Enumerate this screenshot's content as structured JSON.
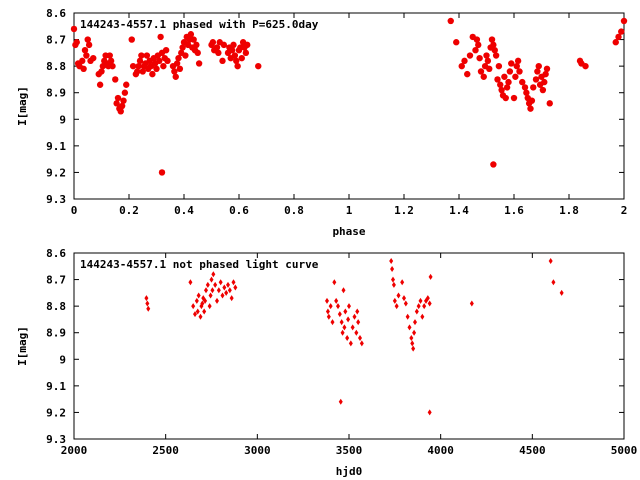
{
  "chart_data": [
    {
      "type": "scatter",
      "title": "144243-4557.1 phased with P=625.0day",
      "xlabel": "phase",
      "ylabel": "I[mag]",
      "xlim": [
        0,
        2
      ],
      "ylim": [
        8.6,
        9.3
      ],
      "y_inverted": true,
      "xticks": [
        "0",
        "0.2",
        "0.4",
        "0.6",
        "0.8",
        "1",
        "1.2",
        "1.4",
        "1.6",
        "1.8",
        "2"
      ],
      "yticks": [
        "8.6",
        "8.7",
        "8.8",
        "8.9",
        "9",
        "9.1",
        "9.2",
        "9.3"
      ],
      "grid": false,
      "marker_color": "#ee0000",
      "marker": "filled-circle",
      "series": [
        {
          "x": [
            0.0,
            0.005,
            0.01,
            0.015,
            0.02,
            0.03,
            0.035,
            0.04,
            0.045,
            0.05,
            0.055,
            0.06,
            0.07,
            0.09,
            0.095,
            0.1,
            0.105,
            0.11,
            0.115,
            0.12,
            0.125,
            0.13,
            0.135,
            0.14,
            0.15,
            0.155,
            0.16,
            0.165,
            0.17,
            0.175,
            0.18,
            0.185,
            0.19,
            0.21,
            0.215,
            0.225,
            0.23,
            0.235,
            0.24,
            0.245,
            0.25,
            0.255,
            0.26,
            0.265,
            0.27,
            0.275,
            0.28,
            0.285,
            0.29,
            0.295,
            0.3,
            0.305,
            0.31,
            0.315,
            0.32,
            0.325,
            0.33,
            0.335,
            0.34,
            0.36,
            0.365,
            0.37,
            0.375,
            0.38,
            0.385,
            0.39,
            0.395,
            0.4,
            0.405,
            0.41,
            0.415,
            0.42,
            0.425,
            0.43,
            0.435,
            0.44,
            0.445,
            0.45,
            0.455,
            0.5,
            0.505,
            0.51,
            0.52,
            0.525,
            0.53,
            0.54,
            0.545,
            0.56,
            0.565,
            0.57,
            0.575,
            0.58,
            0.585,
            0.59,
            0.595,
            0.6,
            0.605,
            0.61,
            0.615,
            0.62,
            0.625,
            0.63,
            0.67,
            1.37,
            1.39,
            1.41,
            1.42,
            1.43,
            1.44,
            1.45,
            1.46,
            1.465,
            1.47,
            1.475,
            1.48,
            1.49,
            1.495,
            1.5,
            1.505,
            1.51,
            1.515,
            1.52,
            1.525,
            1.53,
            1.535,
            1.54,
            1.545,
            1.55,
            1.555,
            1.56,
            1.565,
            1.57,
            1.575,
            1.58,
            1.585,
            1.59,
            1.6,
            1.605,
            1.61,
            1.615,
            1.62,
            1.63,
            1.64,
            1.645,
            1.65,
            1.655,
            1.66,
            1.665,
            1.67,
            1.68,
            1.685,
            1.69,
            1.695,
            1.7,
            1.705,
            1.71,
            1.715,
            1.72,
            1.73,
            1.84,
            1.845,
            1.86,
            1.97,
            1.98,
            1.99,
            2.0,
            1.525
          ],
          "y": [
            8.66,
            8.72,
            8.71,
            8.79,
            8.8,
            8.78,
            8.81,
            8.74,
            8.76,
            8.7,
            8.72,
            8.78,
            8.77,
            8.83,
            8.87,
            8.82,
            8.8,
            8.78,
            8.76,
            8.79,
            8.8,
            8.76,
            8.78,
            8.8,
            8.85,
            8.94,
            8.92,
            8.96,
            8.97,
            8.95,
            8.93,
            8.9,
            8.87,
            8.7,
            8.8,
            8.83,
            8.82,
            8.8,
            8.78,
            8.76,
            8.82,
            8.8,
            8.79,
            8.76,
            8.81,
            8.78,
            8.8,
            8.83,
            8.77,
            8.79,
            8.81,
            8.76,
            8.78,
            8.69,
            8.75,
            8.8,
            8.77,
            8.74,
            8.78,
            8.8,
            8.82,
            8.84,
            8.79,
            8.77,
            8.81,
            8.75,
            8.73,
            8.71,
            8.76,
            8.69,
            8.72,
            8.7,
            8.68,
            8.73,
            8.7,
            8.74,
            8.72,
            8.75,
            8.79,
            8.72,
            8.71,
            8.74,
            8.73,
            8.75,
            8.71,
            8.78,
            8.72,
            8.75,
            8.73,
            8.77,
            8.74,
            8.72,
            8.76,
            8.78,
            8.8,
            8.74,
            8.73,
            8.77,
            8.71,
            8.73,
            8.75,
            8.72,
            8.8,
            8.63,
            8.71,
            8.8,
            8.78,
            8.83,
            8.76,
            8.69,
            8.74,
            8.7,
            8.72,
            8.77,
            8.82,
            8.84,
            8.8,
            8.76,
            8.78,
            8.81,
            8.73,
            8.7,
            8.72,
            8.74,
            8.76,
            8.85,
            8.8,
            8.87,
            8.89,
            8.91,
            8.84,
            8.92,
            8.88,
            8.86,
            8.82,
            8.79,
            8.92,
            8.84,
            8.8,
            8.78,
            8.82,
            8.86,
            8.88,
            8.9,
            8.92,
            8.94,
            8.96,
            8.93,
            8.88,
            8.85,
            8.82,
            8.8,
            8.87,
            8.84,
            8.89,
            8.86,
            8.83,
            8.81,
            8.94,
            8.78,
            8.79,
            8.8,
            8.71,
            8.69,
            8.67,
            8.63,
            9.17
          ],
          "outliers": [
            {
              "x": 0.32,
              "y": 9.2
            }
          ]
        }
      ]
    },
    {
      "type": "scatter",
      "title": "144243-4557.1 not phased light curve",
      "xlabel": "hjd0",
      "ylabel": "I[mag]",
      "xlim": [
        2000,
        5000
      ],
      "ylim": [
        8.6,
        9.3
      ],
      "y_inverted": true,
      "xticks": [
        "2000",
        "2500",
        "3000",
        "3500",
        "4000",
        "4500",
        "5000"
      ],
      "yticks": [
        "8.6",
        "8.7",
        "8.8",
        "8.9",
        "9",
        "9.1",
        "9.2",
        "9.3"
      ],
      "grid": false,
      "marker_color": "#ee0000",
      "marker": "small-diamond",
      "series": [
        {
          "x": [
            2395,
            2400,
            2405,
            2635,
            2650,
            2660,
            2670,
            2675,
            2680,
            2690,
            2695,
            2700,
            2705,
            2710,
            2715,
            2720,
            2730,
            2740,
            2745,
            2750,
            2755,
            2760,
            2770,
            2780,
            2790,
            2800,
            2810,
            2820,
            2830,
            2840,
            2850,
            2860,
            2870,
            2880,
            3380,
            3385,
            3390,
            3400,
            3410,
            3420,
            3430,
            3440,
            3450,
            3460,
            3465,
            3470,
            3475,
            3480,
            3490,
            3495,
            3500,
            3510,
            3520,
            3530,
            3540,
            3545,
            3550,
            3560,
            3570,
            3730,
            3735,
            3740,
            3745,
            3750,
            3760,
            3770,
            3790,
            3800,
            3810,
            3820,
            3830,
            3840,
            3845,
            3850,
            3855,
            3860,
            3870,
            3880,
            3890,
            3900,
            3910,
            3920,
            3930,
            3940,
            3945,
            4170,
            4600,
            4615,
            4660,
            3455,
            3940
          ],
          "y": [
            8.77,
            8.79,
            8.81,
            8.71,
            8.8,
            8.83,
            8.78,
            8.82,
            8.76,
            8.84,
            8.8,
            8.79,
            8.77,
            8.82,
            8.78,
            8.74,
            8.72,
            8.8,
            8.76,
            8.7,
            8.74,
            8.68,
            8.72,
            8.78,
            8.74,
            8.71,
            8.76,
            8.73,
            8.75,
            8.72,
            8.74,
            8.77,
            8.71,
            8.73,
            8.78,
            8.82,
            8.84,
            8.8,
            8.86,
            8.71,
            8.78,
            8.8,
            8.83,
            8.86,
            8.9,
            8.74,
            8.88,
            8.82,
            8.92,
            8.85,
            8.8,
            8.94,
            8.88,
            8.84,
            8.9,
            8.82,
            8.86,
            8.92,
            8.94,
            8.63,
            8.66,
            8.7,
            8.72,
            8.78,
            8.8,
            8.76,
            8.71,
            8.77,
            8.79,
            8.84,
            8.88,
            8.92,
            8.94,
            8.96,
            8.9,
            8.86,
            8.82,
            8.8,
            8.78,
            8.84,
            8.8,
            8.78,
            8.77,
            8.79,
            8.69,
            8.79,
            8.63,
            8.71,
            8.75,
            9.16,
            9.2
          ]
        }
      ]
    }
  ]
}
